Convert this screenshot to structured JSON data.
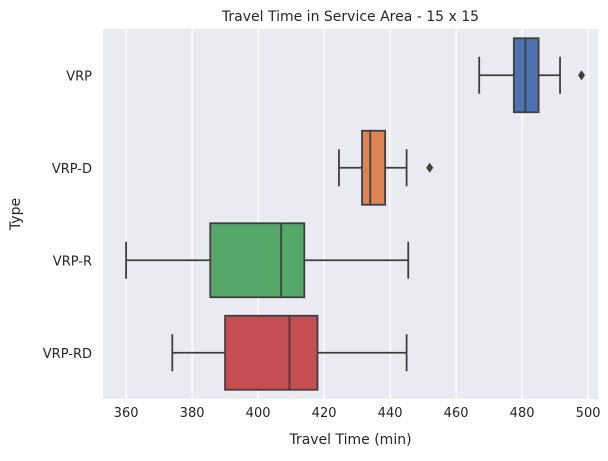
{
  "chart_data": {
    "type": "box",
    "orientation": "horizontal",
    "title": "Travel Time in Service Area - 15 x 15",
    "xlabel": "Travel Time (min)",
    "ylabel": "Type",
    "xlim": [
      353,
      503
    ],
    "xticks": [
      360,
      380,
      400,
      420,
      440,
      460,
      480,
      500
    ],
    "grid": true,
    "categories": [
      "VRP",
      "VRP-D",
      "VRP-R",
      "VRP-RD"
    ],
    "series": [
      {
        "category": "VRP",
        "color": "#4c72b0",
        "whisker_low": 467,
        "q1": 477.5,
        "median": 481,
        "q3": 485,
        "whisker_high": 491.5,
        "outliers": [
          498
        ]
      },
      {
        "category": "VRP-D",
        "color": "#dd8452",
        "whisker_low": 424.5,
        "q1": 431.5,
        "median": 434,
        "q3": 438.5,
        "whisker_high": 445,
        "outliers": [
          452
        ]
      },
      {
        "category": "VRP-R",
        "color": "#55a868",
        "whisker_low": 360,
        "q1": 385.5,
        "median": 407,
        "q3": 414,
        "whisker_high": 445.5,
        "outliers": []
      },
      {
        "category": "VRP-RD",
        "color": "#c44e52",
        "whisker_low": 374,
        "q1": 390,
        "median": 409.5,
        "q3": 418,
        "whisker_high": 445,
        "outliers": []
      }
    ]
  }
}
